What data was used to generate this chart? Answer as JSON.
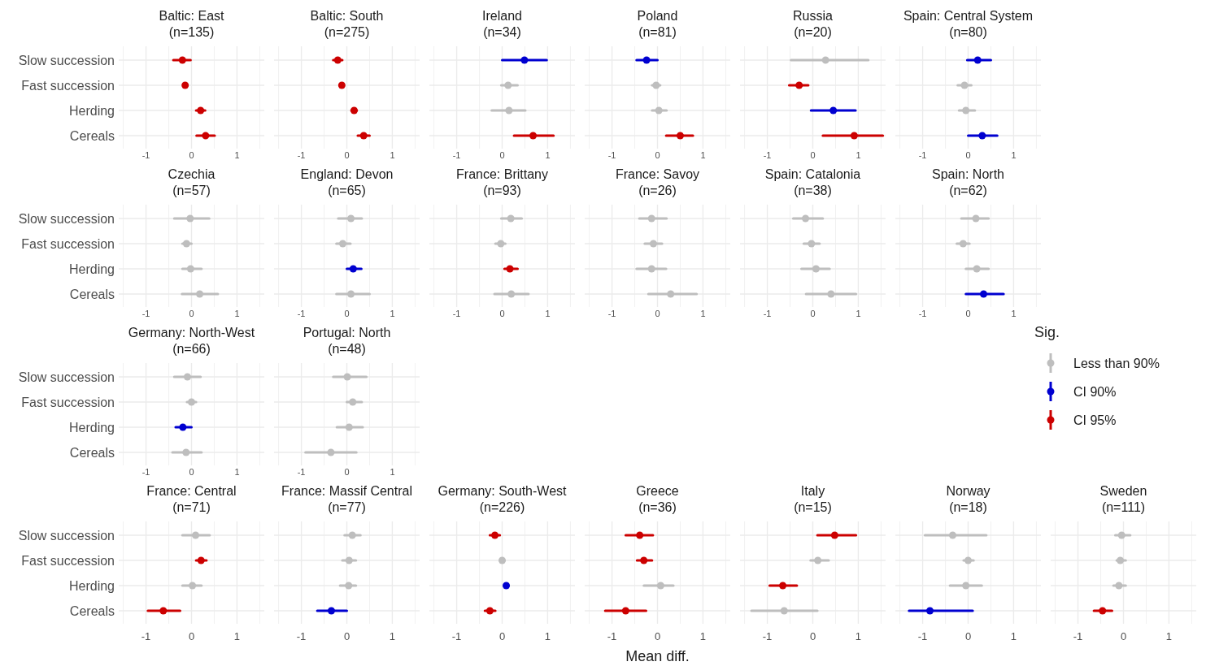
{
  "chart_data": [
    {
      "type": "scatter",
      "orientation": "horizontal",
      "title": "Baltic: East",
      "subtitle": "(n=135)",
      "categories": [
        "Slow succession",
        "Fast succession",
        "Herding",
        "Cereals"
      ],
      "xlim": [
        -1.6,
        1.6
      ],
      "xticks": [
        {
          "value": -1.5,
          "label": null
        },
        -1,
        {
          "value": -0.5,
          "label": null
        },
        0,
        {
          "value": 0.5,
          "label": null
        },
        1,
        {
          "value": 1.5,
          "label": null
        }
      ],
      "grid": true,
      "marker": "circle",
      "series": [
        {
          "color": "#cc0000",
          "values": [
            -0.2,
            -0.14,
            0.2,
            0.31
          ],
          "errors": [
            [
              -0.4,
              -0.02
            ],
            [
              -0.18,
              -0.1
            ],
            [
              0.1,
              0.3
            ],
            [
              0.11,
              0.51
            ]
          ]
        }
      ]
    },
    {
      "type": "scatter",
      "orientation": "horizontal",
      "title": "Baltic: South",
      "subtitle": "(n=275)",
      "categories": [
        null,
        null,
        null,
        null
      ],
      "xlim": [
        -1.6,
        1.6
      ],
      "xticks": [
        {
          "value": -1.5,
          "label": null
        },
        -1,
        {
          "value": -0.5,
          "label": null
        },
        0,
        {
          "value": 0.5,
          "label": null
        },
        1,
        {
          "value": 1.5,
          "label": null
        }
      ],
      "grid": true,
      "marker": "circle",
      "tick_labels": "x",
      "series": [
        {
          "color": "#cc0000",
          "values": [
            -0.2,
            -0.11,
            0.16,
            0.37
          ],
          "errors": [
            [
              -0.3,
              -0.1
            ],
            [
              -0.14,
              -0.08
            ],
            [
              0.1,
              0.22
            ],
            [
              0.24,
              0.5
            ]
          ]
        }
      ]
    },
    {
      "type": "scatter",
      "orientation": "horizontal",
      "title": "Ireland",
      "subtitle": "(n=34)",
      "categories": [
        null,
        null,
        null,
        null
      ],
      "xlim": [
        -1.6,
        1.6
      ],
      "xticks": [
        {
          "value": -1.5,
          "label": null
        },
        -1,
        {
          "value": -0.5,
          "label": null
        },
        0,
        {
          "value": 0.5,
          "label": null
        },
        1,
        {
          "value": 1.5,
          "label": null
        }
      ],
      "grid": true,
      "marker": "circle",
      "tick_labels": "x",
      "series": [
        {
          "color": "#bebebe",
          "values": [
            null,
            0.13,
            0.15,
            null
          ],
          "errors": [
            null,
            [
              -0.02,
              0.34
            ],
            [
              -0.23,
              0.51
            ],
            null
          ]
        },
        {
          "color": "#0000d0",
          "values": [
            0.49,
            null,
            null,
            null
          ],
          "errors": [
            [
              0,
              0.98
            ],
            null,
            null,
            null
          ]
        },
        {
          "color": "#cc0000",
          "values": [
            null,
            null,
            null,
            0.68
          ],
          "errors": [
            null,
            null,
            null,
            [
              0.26,
              1.13
            ]
          ]
        }
      ]
    },
    {
      "type": "scatter",
      "orientation": "horizontal",
      "title": "Poland",
      "subtitle": "(n=81)",
      "categories": [
        null,
        null,
        null,
        null
      ],
      "xlim": [
        -1.6,
        1.6
      ],
      "xticks": [
        {
          "value": -1.5,
          "label": null
        },
        -1,
        {
          "value": -0.5,
          "label": null
        },
        0,
        {
          "value": 0.5,
          "label": null
        },
        1,
        {
          "value": 1.5,
          "label": null
        }
      ],
      "grid": true,
      "marker": "circle",
      "tick_labels": "x",
      "series": [
        {
          "color": "#bebebe",
          "values": [
            null,
            -0.03,
            0.03,
            null
          ],
          "errors": [
            null,
            [
              -0.12,
              0.06
            ],
            [
              -0.12,
              0.2
            ],
            null
          ]
        },
        {
          "color": "#0000d0",
          "values": [
            -0.24,
            null,
            null,
            null
          ],
          "errors": [
            [
              -0.46,
              0
            ],
            null,
            null,
            null
          ]
        },
        {
          "color": "#cc0000",
          "values": [
            null,
            null,
            null,
            0.5
          ],
          "errors": [
            null,
            null,
            null,
            [
              0.19,
              0.78
            ]
          ]
        }
      ]
    },
    {
      "type": "scatter",
      "orientation": "horizontal",
      "title": "Russia",
      "subtitle": "(n=20)",
      "categories": [
        null,
        null,
        null,
        null
      ],
      "xlim": [
        -1.6,
        1.6
      ],
      "xticks": [
        {
          "value": -1.5,
          "label": null
        },
        -1,
        {
          "value": -0.5,
          "label": null
        },
        0,
        {
          "value": 0.5,
          "label": null
        },
        1,
        {
          "value": 1.5,
          "label": null
        }
      ],
      "grid": true,
      "marker": "circle",
      "tick_labels": "x",
      "series": [
        {
          "color": "#bebebe",
          "values": [
            0.28,
            null,
            null,
            null
          ],
          "errors": [
            [
              -0.48,
              1.22
            ],
            null,
            null,
            null
          ]
        },
        {
          "color": "#0000d0",
          "values": [
            null,
            null,
            0.45,
            null
          ],
          "errors": [
            null,
            null,
            [
              -0.04,
              0.94
            ],
            null
          ]
        },
        {
          "color": "#cc0000",
          "values": [
            null,
            -0.3,
            null,
            0.91
          ],
          "errors": [
            null,
            [
              -0.52,
              -0.1
            ],
            null,
            [
              0.22,
              1.54
            ]
          ]
        }
      ]
    },
    {
      "type": "scatter",
      "orientation": "horizontal",
      "title": "Spain: Central System",
      "subtitle": "(n=80)",
      "categories": [
        null,
        null,
        null,
        null
      ],
      "xlim": [
        -1.6,
        1.6
      ],
      "xticks": [
        {
          "value": -1.5,
          "label": null
        },
        -1,
        {
          "value": -0.5,
          "label": null
        },
        0,
        {
          "value": 0.5,
          "label": null
        },
        1,
        {
          "value": 1.5,
          "label": null
        }
      ],
      "grid": true,
      "marker": "circle",
      "tick_labels": "x",
      "series": [
        {
          "color": "#bebebe",
          "values": [
            null,
            -0.08,
            -0.05,
            null
          ],
          "errors": [
            null,
            [
              -0.23,
              0.07
            ],
            [
              -0.2,
              0.15
            ],
            null
          ]
        },
        {
          "color": "#0000d0",
          "values": [
            0.21,
            null,
            null,
            0.31
          ],
          "errors": [
            [
              -0.02,
              0.5
            ],
            null,
            null,
            [
              0,
              0.64
            ]
          ]
        }
      ]
    },
    {
      "type": "scatter",
      "orientation": "horizontal",
      "title": "Czechia",
      "subtitle": "(n=57)",
      "categories": [
        "Slow succession",
        "Fast succession",
        "Herding",
        "Cereals"
      ],
      "xlim": [
        -1.6,
        1.6
      ],
      "xticks": [
        {
          "value": -1.5,
          "label": null
        },
        -1,
        {
          "value": -0.5,
          "label": null
        },
        0,
        {
          "value": 0.5,
          "label": null
        },
        1,
        {
          "value": 1.5,
          "label": null
        }
      ],
      "grid": true,
      "marker": "circle",
      "series": [
        {
          "color": "#bebebe",
          "values": [
            -0.03,
            -0.11,
            -0.02,
            0.18
          ],
          "errors": [
            [
              -0.38,
              0.39
            ],
            [
              -0.2,
              0
            ],
            [
              -0.2,
              0.22
            ],
            [
              -0.21,
              0.58
            ]
          ]
        }
      ]
    },
    {
      "type": "scatter",
      "orientation": "horizontal",
      "title": "England: Devon",
      "subtitle": "(n=65)",
      "categories": [
        null,
        null,
        null,
        null
      ],
      "xlim": [
        -1.6,
        1.6
      ],
      "xticks": [
        {
          "value": -1.5,
          "label": null
        },
        -1,
        {
          "value": -0.5,
          "label": null
        },
        0,
        {
          "value": 0.5,
          "label": null
        },
        1,
        {
          "value": 1.5,
          "label": null
        }
      ],
      "grid": true,
      "marker": "circle",
      "tick_labels": "x",
      "series": [
        {
          "color": "#bebebe",
          "values": [
            0.09,
            -0.09,
            null,
            0.09
          ],
          "errors": [
            [
              -0.19,
              0.33
            ],
            [
              -0.23,
              0.08
            ],
            null,
            [
              -0.23,
              0.5
            ]
          ]
        },
        {
          "color": "#0000d0",
          "values": [
            null,
            null,
            0.14,
            null
          ],
          "errors": [
            null,
            null,
            [
              0,
              0.32
            ],
            null
          ]
        }
      ]
    },
    {
      "type": "scatter",
      "orientation": "horizontal",
      "title": "France: Brittany",
      "subtitle": "(n=93)",
      "categories": [
        null,
        null,
        null,
        null
      ],
      "xlim": [
        -1.6,
        1.6
      ],
      "xticks": [
        {
          "value": -1.5,
          "label": null
        },
        -1,
        {
          "value": -0.5,
          "label": null
        },
        0,
        {
          "value": 0.5,
          "label": null
        },
        1,
        {
          "value": 1.5,
          "label": null
        }
      ],
      "grid": true,
      "marker": "circle",
      "tick_labels": "x",
      "series": [
        {
          "color": "#bebebe",
          "values": [
            0.19,
            -0.03,
            null,
            0.2
          ],
          "errors": [
            [
              -0.02,
              0.43
            ],
            [
              -0.15,
              0.07
            ],
            null,
            [
              -0.17,
              0.58
            ]
          ]
        },
        {
          "color": "#cc0000",
          "values": [
            null,
            null,
            0.17,
            null
          ],
          "errors": [
            null,
            null,
            [
              0.05,
              0.34
            ],
            null
          ]
        }
      ]
    },
    {
      "type": "scatter",
      "orientation": "horizontal",
      "title": "France: Savoy",
      "subtitle": "(n=26)",
      "categories": [
        null,
        null,
        null,
        null
      ],
      "xlim": [
        -1.6,
        1.6
      ],
      "xticks": [
        {
          "value": -1.5,
          "label": null
        },
        -1,
        {
          "value": -0.5,
          "label": null
        },
        0,
        {
          "value": 0.5,
          "label": null
        },
        1,
        {
          "value": 1.5,
          "label": null
        }
      ],
      "grid": true,
      "marker": "circle",
      "tick_labels": "x",
      "series": [
        {
          "color": "#bebebe",
          "values": [
            -0.13,
            -0.09,
            -0.13,
            0.29
          ],
          "errors": [
            [
              -0.4,
              0.2
            ],
            [
              -0.28,
              0.1
            ],
            [
              -0.46,
              0.19
            ],
            [
              -0.2,
              0.86
            ]
          ]
        }
      ]
    },
    {
      "type": "scatter",
      "orientation": "horizontal",
      "title": "Spain: Catalonia",
      "subtitle": "(n=38)",
      "categories": [
        null,
        null,
        null,
        null
      ],
      "xlim": [
        -1.6,
        1.6
      ],
      "xticks": [
        {
          "value": -1.5,
          "label": null
        },
        -1,
        {
          "value": -0.5,
          "label": null
        },
        0,
        {
          "value": 0.5,
          "label": null
        },
        1,
        {
          "value": 1.5,
          "label": null
        }
      ],
      "grid": true,
      "marker": "circle",
      "tick_labels": "x",
      "series": [
        {
          "color": "#bebebe",
          "values": [
            -0.16,
            -0.03,
            0.07,
            0.4
          ],
          "errors": [
            [
              -0.43,
              0.22
            ],
            [
              -0.2,
              0.15
            ],
            [
              -0.25,
              0.37
            ],
            [
              -0.15,
              0.95
            ]
          ]
        }
      ]
    },
    {
      "type": "scatter",
      "orientation": "horizontal",
      "title": "Spain: North",
      "subtitle": "(n=62)",
      "categories": [
        null,
        null,
        null,
        null
      ],
      "xlim": [
        -1.6,
        1.6
      ],
      "xticks": [
        {
          "value": -1.5,
          "label": null
        },
        -1,
        {
          "value": -0.5,
          "label": null
        },
        0,
        {
          "value": 0.5,
          "label": null
        },
        1,
        {
          "value": 1.5,
          "label": null
        }
      ],
      "grid": true,
      "marker": "circle",
      "tick_labels": "x",
      "series": [
        {
          "color": "#bebebe",
          "values": [
            0.17,
            -0.11,
            0.19,
            null
          ],
          "errors": [
            [
              -0.15,
              0.45
            ],
            [
              -0.25,
              0.03
            ],
            [
              -0.05,
              0.45
            ],
            null
          ]
        },
        {
          "color": "#0000d0",
          "values": [
            null,
            null,
            null,
            0.34
          ],
          "errors": [
            null,
            null,
            null,
            [
              -0.05,
              0.78
            ]
          ]
        }
      ]
    },
    {
      "type": "scatter",
      "orientation": "horizontal",
      "title": "Germany: North-West",
      "subtitle": "(n=66)",
      "categories": [
        "Slow succession",
        "Fast succession",
        "Herding",
        "Cereals"
      ],
      "xlim": [
        -1.6,
        1.6
      ],
      "xticks": [
        {
          "value": -1.5,
          "label": null
        },
        -1,
        {
          "value": -0.5,
          "label": null
        },
        0,
        {
          "value": 0.5,
          "label": null
        },
        1,
        {
          "value": 1.5,
          "label": null
        }
      ],
      "grid": true,
      "marker": "circle",
      "series": [
        {
          "color": "#bebebe",
          "values": [
            -0.09,
            0,
            null,
            -0.12
          ],
          "errors": [
            [
              -0.38,
              0.2
            ],
            [
              -0.1,
              0.1
            ],
            null,
            [
              -0.42,
              0.22
            ]
          ]
        },
        {
          "color": "#0000d0",
          "values": [
            null,
            null,
            -0.19,
            null
          ],
          "errors": [
            null,
            null,
            [
              -0.35,
              0
            ],
            null
          ]
        }
      ]
    },
    {
      "type": "scatter",
      "orientation": "horizontal",
      "title": "Portugal: North",
      "subtitle": "(n=48)",
      "categories": [
        null,
        null,
        null,
        null
      ],
      "xlim": [
        -1.6,
        1.6
      ],
      "xticks": [
        {
          "value": -1.5,
          "label": null
        },
        -1,
        {
          "value": -0.5,
          "label": null
        },
        0,
        {
          "value": 0.5,
          "label": null
        },
        1,
        {
          "value": 1.5,
          "label": null
        }
      ],
      "grid": true,
      "marker": "circle",
      "tick_labels": "x",
      "legend": "right",
      "legend_title": "Sig.",
      "series": [
        {
          "name": "Less than 90%",
          "color": "#bebebe",
          "values": [
            0.01,
            0.13,
            0.05,
            -0.35
          ],
          "errors": [
            [
              -0.3,
              0.43
            ],
            [
              0,
              0.33
            ],
            [
              -0.22,
              0.35
            ],
            [
              -0.91,
              0.21
            ]
          ]
        },
        {
          "name": "CI 90%",
          "color": "#0000d0",
          "values": [
            null,
            null,
            null,
            null
          ],
          "errors": [
            null,
            null,
            null,
            null
          ]
        },
        {
          "name": "CI 95%",
          "color": "#cc0000",
          "values": [
            null,
            null,
            null,
            null
          ],
          "errors": [
            null,
            null,
            null,
            null
          ]
        }
      ]
    },
    {
      "type": "scatter",
      "orientation": "horizontal",
      "title": "France: Central",
      "subtitle": "(n=71)",
      "categories": [
        "Slow succession",
        "Fast succession",
        "Herding",
        "Cereals"
      ],
      "xlim": [
        -1.6,
        1.6
      ],
      "xticks": [
        {
          "value": -1.5,
          "label": null
        },
        -1,
        {
          "value": -0.5,
          "label": null
        },
        0,
        {
          "value": 0.5,
          "label": null
        },
        1,
        {
          "value": 1.5,
          "label": null
        }
      ],
      "grid": true,
      "marker": "circle",
      "series": [
        {
          "color": "#bebebe",
          "values": [
            0.09,
            null,
            0.02,
            null
          ],
          "errors": [
            [
              -0.2,
              0.4
            ],
            null,
            [
              -0.2,
              0.22
            ],
            null
          ]
        },
        {
          "color": "#cc0000",
          "values": [
            null,
            0.21,
            null,
            -0.62
          ],
          "errors": [
            null,
            [
              0.1,
              0.33
            ],
            null,
            [
              -0.96,
              -0.25
            ]
          ]
        }
      ]
    },
    {
      "type": "scatter",
      "orientation": "horizontal",
      "title": "France: Massif Central",
      "subtitle": "(n=77)",
      "categories": [
        null,
        null,
        null,
        null
      ],
      "xlim": [
        -1.6,
        1.6
      ],
      "xticks": [
        {
          "value": -1.5,
          "label": null
        },
        -1,
        {
          "value": -0.5,
          "label": null
        },
        0,
        {
          "value": 0.5,
          "label": null
        },
        1,
        {
          "value": 1.5,
          "label": null
        }
      ],
      "grid": true,
      "marker": "circle",
      "tick_labels": "x",
      "series": [
        {
          "color": "#bebebe",
          "values": [
            0.12,
            0.05,
            0.04,
            null
          ],
          "errors": [
            [
              -0.05,
              0.3
            ],
            [
              -0.1,
              0.2
            ],
            [
              -0.15,
              0.2
            ],
            null
          ]
        },
        {
          "color": "#0000d0",
          "values": [
            null,
            null,
            null,
            -0.34
          ],
          "errors": [
            null,
            null,
            null,
            [
              -0.65,
              0
            ]
          ]
        }
      ]
    },
    {
      "type": "scatter",
      "orientation": "horizontal",
      "title": "Germany: South-West",
      "subtitle": "(n=226)",
      "categories": [
        null,
        null,
        null,
        null
      ],
      "xlim": [
        -1.6,
        1.6
      ],
      "xticks": [
        {
          "value": -1.5,
          "label": null
        },
        -1,
        {
          "value": -0.5,
          "label": null
        },
        0,
        {
          "value": 0.5,
          "label": null
        },
        1,
        {
          "value": 1.5,
          "label": null
        }
      ],
      "grid": true,
      "marker": "circle",
      "tick_labels": "x",
      "series": [
        {
          "color": "#bebebe",
          "values": [
            null,
            0,
            null,
            null
          ],
          "errors": [
            null,
            [
              -0.05,
              0.05
            ],
            null,
            null
          ]
        },
        {
          "color": "#0000d0",
          "values": [
            null,
            null,
            0.09,
            null
          ],
          "errors": [
            null,
            null,
            [
              0.04,
              0.14
            ],
            null
          ]
        },
        {
          "color": "#cc0000",
          "values": [
            -0.16,
            null,
            null,
            -0.27
          ],
          "errors": [
            [
              -0.27,
              -0.05
            ],
            null,
            null,
            [
              -0.38,
              -0.15
            ]
          ]
        }
      ]
    },
    {
      "type": "scatter",
      "orientation": "horizontal",
      "title": "Greece",
      "subtitle": "(n=36)",
      "xlabel": "Mean diff.",
      "categories": [
        null,
        null,
        null,
        null
      ],
      "xlim": [
        -1.6,
        1.6
      ],
      "xticks": [
        {
          "value": -1.5,
          "label": null
        },
        -1,
        {
          "value": -0.5,
          "label": null
        },
        0,
        {
          "value": 0.5,
          "label": null
        },
        1,
        {
          "value": 1.5,
          "label": null
        }
      ],
      "grid": true,
      "marker": "circle",
      "tick_labels": "x",
      "series": [
        {
          "color": "#bebebe",
          "values": [
            null,
            null,
            0.07,
            null
          ],
          "errors": [
            null,
            null,
            [
              -0.3,
              0.35
            ],
            null
          ]
        },
        {
          "color": "#cc0000",
          "values": [
            -0.39,
            -0.3,
            null,
            -0.7
          ],
          "errors": [
            [
              -0.7,
              -0.1
            ],
            [
              -0.45,
              -0.12
            ],
            null,
            [
              -1.15,
              -0.25
            ]
          ]
        }
      ]
    },
    {
      "type": "scatter",
      "orientation": "horizontal",
      "title": "Italy",
      "subtitle": "(n=15)",
      "categories": [
        null,
        null,
        null,
        null
      ],
      "xlim": [
        -1.6,
        1.6
      ],
      "xticks": [
        {
          "value": -1.5,
          "label": null
        },
        -1,
        {
          "value": -0.5,
          "label": null
        },
        0,
        {
          "value": 0.5,
          "label": null
        },
        1,
        {
          "value": 1.5,
          "label": null
        }
      ],
      "grid": true,
      "marker": "circle",
      "tick_labels": "x",
      "series": [
        {
          "color": "#bebebe",
          "values": [
            null,
            0.11,
            null,
            -0.63
          ],
          "errors": [
            null,
            [
              -0.05,
              0.35
            ],
            null,
            [
              -1.35,
              0.1
            ]
          ]
        },
        {
          "color": "#cc0000",
          "values": [
            0.48,
            null,
            -0.66,
            null
          ],
          "errors": [
            [
              0.1,
              0.95
            ],
            null,
            [
              -0.95,
              -0.35
            ],
            null
          ]
        }
      ]
    },
    {
      "type": "scatter",
      "orientation": "horizontal",
      "title": "Norway",
      "subtitle": "(n=18)",
      "categories": [
        null,
        null,
        null,
        null
      ],
      "xlim": [
        -1.6,
        1.6
      ],
      "xticks": [
        {
          "value": -1.5,
          "label": null
        },
        -1,
        {
          "value": -0.5,
          "label": null
        },
        0,
        {
          "value": 0.5,
          "label": null
        },
        1,
        {
          "value": 1.5,
          "label": null
        }
      ],
      "grid": true,
      "marker": "circle",
      "tick_labels": "x",
      "series": [
        {
          "color": "#bebebe",
          "values": [
            -0.34,
            0,
            -0.05,
            null
          ],
          "errors": [
            [
              -0.95,
              0.4
            ],
            [
              -0.1,
              0.12
            ],
            [
              -0.4,
              0.3
            ],
            null
          ]
        },
        {
          "color": "#0000d0",
          "values": [
            null,
            null,
            null,
            -0.84
          ],
          "errors": [
            null,
            null,
            null,
            [
              -1.3,
              0.1
            ]
          ]
        }
      ]
    },
    {
      "type": "scatter",
      "orientation": "horizontal",
      "title": "Sweden",
      "subtitle": "(n=111)",
      "categories": [
        null,
        null,
        null,
        null
      ],
      "xlim": [
        -1.6,
        1.6
      ],
      "xticks": [
        {
          "value": -1.5,
          "label": null
        },
        -1,
        {
          "value": -0.5,
          "label": null
        },
        0,
        {
          "value": 0.5,
          "label": null
        },
        1,
        {
          "value": 1.5,
          "label": null
        }
      ],
      "grid": true,
      "marker": "circle",
      "tick_labels": "x",
      "series": [
        {
          "color": "#bebebe",
          "values": [
            -0.04,
            -0.07,
            -0.1,
            null
          ],
          "errors": [
            [
              -0.18,
              0.15
            ],
            [
              -0.15,
              0.05
            ],
            [
              -0.22,
              0.05
            ],
            null
          ]
        },
        {
          "color": "#cc0000",
          "values": [
            null,
            null,
            null,
            -0.46
          ],
          "errors": [
            null,
            null,
            null,
            [
              -0.65,
              -0.25
            ]
          ]
        }
      ]
    }
  ]
}
